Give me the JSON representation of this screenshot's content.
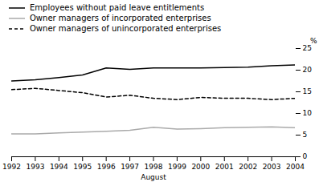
{
  "chart_data": {
    "type": "line",
    "x": [
      1992,
      1993,
      1994,
      1995,
      1996,
      1997,
      1998,
      1999,
      2000,
      2001,
      2002,
      2003,
      2004
    ],
    "series": [
      {
        "name": "Employees without paid leave entitlements",
        "color": "#000000",
        "line_style": "solid",
        "values": [
          17.5,
          17.8,
          18.3,
          18.9,
          20.5,
          20.2,
          20.5,
          20.5,
          20.5,
          20.6,
          20.7,
          21.0,
          21.2
        ]
      },
      {
        "name": "Owner managers of incorporated enterprises",
        "color": "#aaaaaa",
        "line_style": "solid",
        "values": [
          5.3,
          5.3,
          5.5,
          5.7,
          5.9,
          6.1,
          6.8,
          6.4,
          6.5,
          6.7,
          6.8,
          6.9,
          6.7
        ]
      },
      {
        "name": "Owner managers of unincorporated enterprises",
        "color": "#000000",
        "line_style": "dashed",
        "values": [
          15.5,
          15.8,
          15.3,
          14.8,
          13.8,
          14.2,
          13.5,
          13.2,
          13.7,
          13.5,
          13.5,
          13.2,
          13.5
        ]
      }
    ],
    "xlabel": "August",
    "ylabel": "%",
    "xlim": [
      1992,
      2004
    ],
    "xticks": [
      1992,
      1993,
      1994,
      1995,
      1996,
      1997,
      1998,
      1999,
      2000,
      2001,
      2002,
      2003,
      2004
    ],
    "ylim": [
      0,
      25
    ],
    "yticks": [
      0,
      5,
      10,
      15,
      20,
      25
    ],
    "grid": false,
    "legend": "top"
  }
}
